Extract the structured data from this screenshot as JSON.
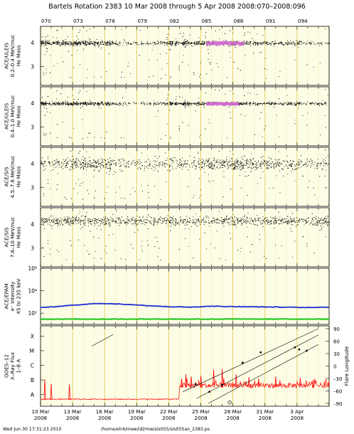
{
  "header": {
    "title": "Bartels Rotation 2383     10 Mar 2008 through 5 Apr 2008     2008:070–2008:096",
    "doy_ticks": [
      "070",
      "073",
      "076",
      "079",
      "082",
      "085",
      "088",
      "091",
      "094"
    ]
  },
  "footer": {
    "timestamp": "Wed Jun 30 17:31:23 2010",
    "path": "/home/elr4/mew/idl/mw/sis055/sis055ao_2383.ps"
  },
  "chart_data": [
    {
      "type": "scatter",
      "panel": "uleis-low",
      "ylabel_lines": [
        "ACE/ULEIS",
        "0.2–0.4 MeV/nuc",
        "He Mass"
      ],
      "yticks": [
        "4",
        "3"
      ],
      "ylim": [
        2.2,
        4.7
      ],
      "xlim_day": [
        0,
        27
      ],
      "band_center": 4.0,
      "band_spread": 0.08,
      "band_days": [
        0,
        5.2,
        9.6,
        14.0,
        27
      ],
      "band_density": [
        1.0,
        0.9,
        0.2,
        1.0,
        0.2
      ],
      "enhanced_days": [
        15.5,
        19.0
      ],
      "enhanced_color": "#d36bd3",
      "point_color": "#000000"
    },
    {
      "type": "scatter",
      "panel": "uleis-high",
      "ylabel_lines": [
        "ACE/ULEIS",
        "0.4–1.0 MeV/nuc",
        "He Mass"
      ],
      "yticks": [
        "4",
        "3"
      ],
      "ylim": [
        2.2,
        4.7
      ],
      "xlim_day": [
        0,
        27
      ],
      "band_center": 4.0,
      "band_spread": 0.06,
      "band_days": [
        0,
        5.2,
        9.6,
        14.0,
        27
      ],
      "band_density": [
        1.0,
        0.8,
        0.15,
        1.0,
        0.35
      ],
      "enhanced_days": [
        15.5,
        18.5
      ],
      "enhanced_color": "#d36bd3",
      "point_color": "#000000"
    },
    {
      "type": "scatter",
      "panel": "sis-low",
      "ylabel_lines": [
        "ACE/SIS",
        "4.5–7.6 MeV/nuc",
        "He Mass"
      ],
      "yticks": [
        "4",
        "3"
      ],
      "ylim": [
        2.2,
        4.7
      ],
      "xlim_day": [
        0,
        27
      ],
      "band_center": 4.0,
      "band_spread": 0.22,
      "band_days": [
        0,
        2,
        4.5,
        9,
        14,
        16,
        27
      ],
      "band_density": [
        0.4,
        0.6,
        1.0,
        0.35,
        0.4,
        1.0,
        0.35
      ],
      "point_color": "#000000"
    },
    {
      "type": "scatter",
      "panel": "sis-high",
      "ylabel_lines": [
        "ACE/SIS",
        "7.6–10 MeV/nuc",
        "He Mass"
      ],
      "yticks": [
        "4",
        "3"
      ],
      "ylim": [
        2.2,
        4.7
      ],
      "xlim_day": [
        0,
        27
      ],
      "band_center": 4.15,
      "band_spread": 0.16,
      "band_days": [
        0,
        27
      ],
      "band_density": [
        0.6,
        0.6
      ],
      "point_color": "#000000"
    },
    {
      "type": "line",
      "panel": "epam",
      "ylabel_lines": [
        "ACE/EPAM",
        "e⁻ Intensity",
        "45 to 235 keV"
      ],
      "yscale": "log",
      "yticks": [
        "10⁶",
        "10⁴",
        "10²"
      ],
      "ylim": [
        10,
        1000000
      ],
      "series": [
        {
          "name": "",
          "color": "#1f2fd0",
          "x": [
            0,
            1,
            2,
            3,
            4,
            5,
            6,
            7,
            8,
            9,
            10,
            11,
            12,
            13,
            14,
            15,
            16,
            17,
            18,
            19,
            20,
            21,
            22,
            23,
            24,
            25,
            26,
            27
          ],
          "values": [
            320,
            360,
            430,
            520,
            600,
            700,
            720,
            680,
            620,
            560,
            470,
            420,
            380,
            360,
            350,
            380,
            420,
            400,
            390,
            380,
            370,
            360,
            350,
            340,
            330,
            320,
            330,
            340
          ]
        },
        {
          "name": "",
          "color": "#18c818",
          "x": [
            0,
            27
          ],
          "values": [
            30,
            30
          ]
        }
      ]
    },
    {
      "type": "line",
      "panel": "goes",
      "ylabel_lines": [
        "GOES–12",
        "X–Ray Flux",
        "1–8 A"
      ],
      "yticks": [
        "X",
        "M",
        "C",
        "B",
        "A"
      ],
      "y2label": "Flare Longitude",
      "y2ticks": [
        "90",
        "60",
        "30",
        "0",
        "–30",
        "–60",
        "–90"
      ],
      "xticks": [
        {
          "day": 0,
          "line1": "10 Mar",
          "line2": "2008"
        },
        {
          "day": 3,
          "line1": "13 Mar",
          "line2": "2008"
        },
        {
          "day": 6,
          "line1": "16 Mar",
          "line2": "2008"
        },
        {
          "day": 9,
          "line1": "19 Mar",
          "line2": "2008"
        },
        {
          "day": 12,
          "line1": "22 Mar",
          "line2": "2008"
        },
        {
          "day": 15,
          "line1": "25 Mar",
          "line2": "2008"
        },
        {
          "day": 18,
          "line1": "28 Mar",
          "line2": "2008"
        },
        {
          "day": 21,
          "line1": "31 Mar",
          "line2": "2008"
        },
        {
          "day": 24,
          "line1": "3 Apr",
          "line2": "2008"
        }
      ],
      "flux_color": "#ff0000",
      "quiet_days": [
        0,
        13.0
      ],
      "active_days": [
        13.0,
        27
      ],
      "flux_spikes": [
        {
          "day": 0.4,
          "level": 1.55
        },
        {
          "day": 1.0,
          "level": 1.25
        },
        {
          "day": 2.7,
          "level": 1.2
        },
        {
          "day": 13.2,
          "level": 1.6
        },
        {
          "day": 13.6,
          "level": 1.9
        },
        {
          "day": 14.1,
          "level": 1.75
        },
        {
          "day": 15.0,
          "level": 1.8
        },
        {
          "day": 16.2,
          "level": 2.2
        },
        {
          "day": 17.0,
          "level": 2.25
        },
        {
          "day": 18.3,
          "level": 1.9
        },
        {
          "day": 19.5,
          "level": 1.7
        },
        {
          "day": 20.4,
          "level": 1.6
        },
        {
          "day": 22.0,
          "level": 1.75
        },
        {
          "day": 24.3,
          "level": 1.65
        },
        {
          "day": 25.5,
          "level": 1.5
        }
      ],
      "rotation_lines": [
        {
          "day0": 4.8,
          "lon0": 48,
          "day1": 6.8,
          "lon1": 76
        },
        {
          "day0": 13.3,
          "lon0": -62,
          "day1": 26.0,
          "lon1": 92
        },
        {
          "day0": 14.6,
          "lon0": -78,
          "day1": 26.0,
          "lon1": 75
        },
        {
          "day0": 15.7,
          "lon0": -92,
          "day1": 26.0,
          "lon1": 52
        }
      ],
      "flare_points": [
        {
          "day": 15.8,
          "lon": -62
        },
        {
          "day": 17.0,
          "lon": -45
        },
        {
          "day": 18.9,
          "lon": 8
        },
        {
          "day": 20.6,
          "lon": 33
        },
        {
          "day": 23.8,
          "lon": 45
        },
        {
          "day": 24.2,
          "lon": 40
        },
        {
          "day": 24.9,
          "lon": 37
        },
        {
          "day": 14.5,
          "lon": -44
        }
      ],
      "open_points": [
        {
          "day": 17.7,
          "lon": -88
        }
      ]
    }
  ]
}
